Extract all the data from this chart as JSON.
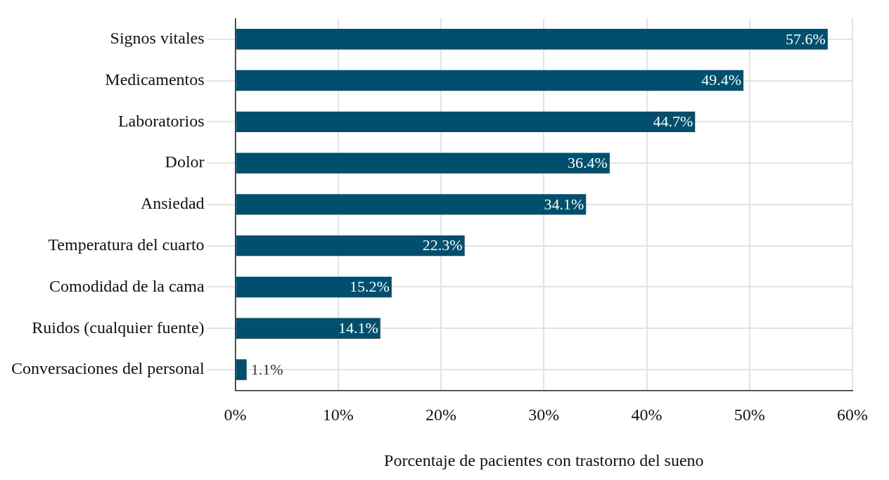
{
  "chart_data": {
    "type": "bar",
    "orientation": "horizontal",
    "xlabel": "Porcentaje de pacientes con trastorno del sueno",
    "categories": [
      "Signos vitales",
      "Medicamentos",
      "Laboratorios",
      "Dolor",
      "Ansiedad",
      "Temperatura del cuarto",
      "Comodidad de la cama",
      "Ruidos (cualquier fuente)",
      "Conversaciones del personal"
    ],
    "values": [
      57.6,
      49.4,
      44.7,
      36.4,
      34.1,
      22.3,
      15.2,
      14.1,
      1.1
    ],
    "value_labels": [
      "57.6%",
      "49.4%",
      "44.7%",
      "36.4%",
      "34.1%",
      "22.3%",
      "15.2%",
      "14.1%",
      "1.1%"
    ],
    "color": "#004f6e",
    "xlim": [
      0,
      60
    ],
    "xticks": [
      {
        "value": 0,
        "label": "0%"
      },
      {
        "value": 10,
        "label": "10%"
      },
      {
        "value": 20,
        "label": "20%"
      },
      {
        "value": 30,
        "label": "30%"
      },
      {
        "value": 40,
        "label": "40%"
      },
      {
        "value": 50,
        "label": "50%"
      },
      {
        "value": 60,
        "label": "60%"
      }
    ],
    "grid": true,
    "legend": false
  }
}
